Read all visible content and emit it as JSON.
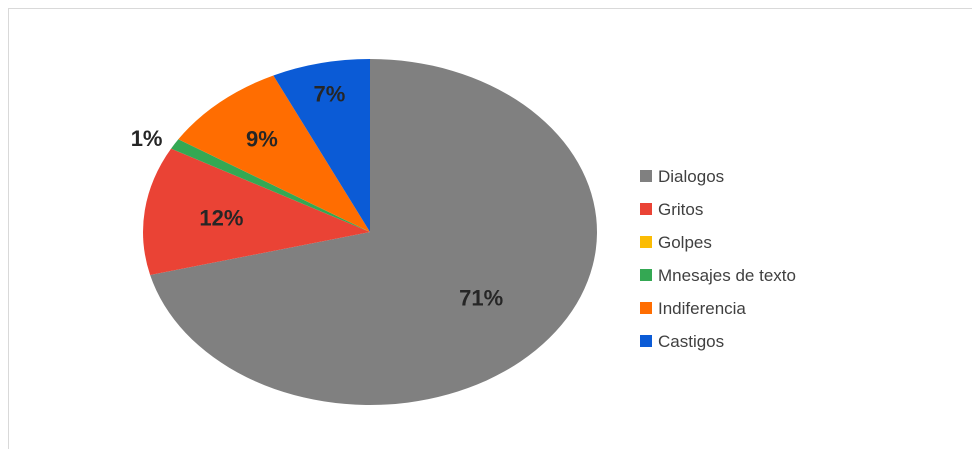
{
  "chart_data": {
    "type": "pie",
    "title": "",
    "categories": [
      "Dialogos",
      "Gritos",
      "Golpes",
      "Mnesajes de texto",
      "Indiferencia",
      "Castigos"
    ],
    "values": [
      71,
      12,
      0,
      1,
      9,
      7
    ],
    "labels": [
      "71%",
      "12%",
      "",
      "1%",
      "9%",
      "7%"
    ],
    "colors": [
      "#808080",
      "#ea4335",
      "#fbbc04",
      "#34a853",
      "#ff6d01",
      "#0b5bd6"
    ],
    "label_colors": [
      "#262626",
      "#262626",
      "#262626",
      "#262626",
      "#262626",
      "#262626"
    ],
    "legend_position": "right",
    "start_angle_deg": 0,
    "direction": "clockwise"
  }
}
